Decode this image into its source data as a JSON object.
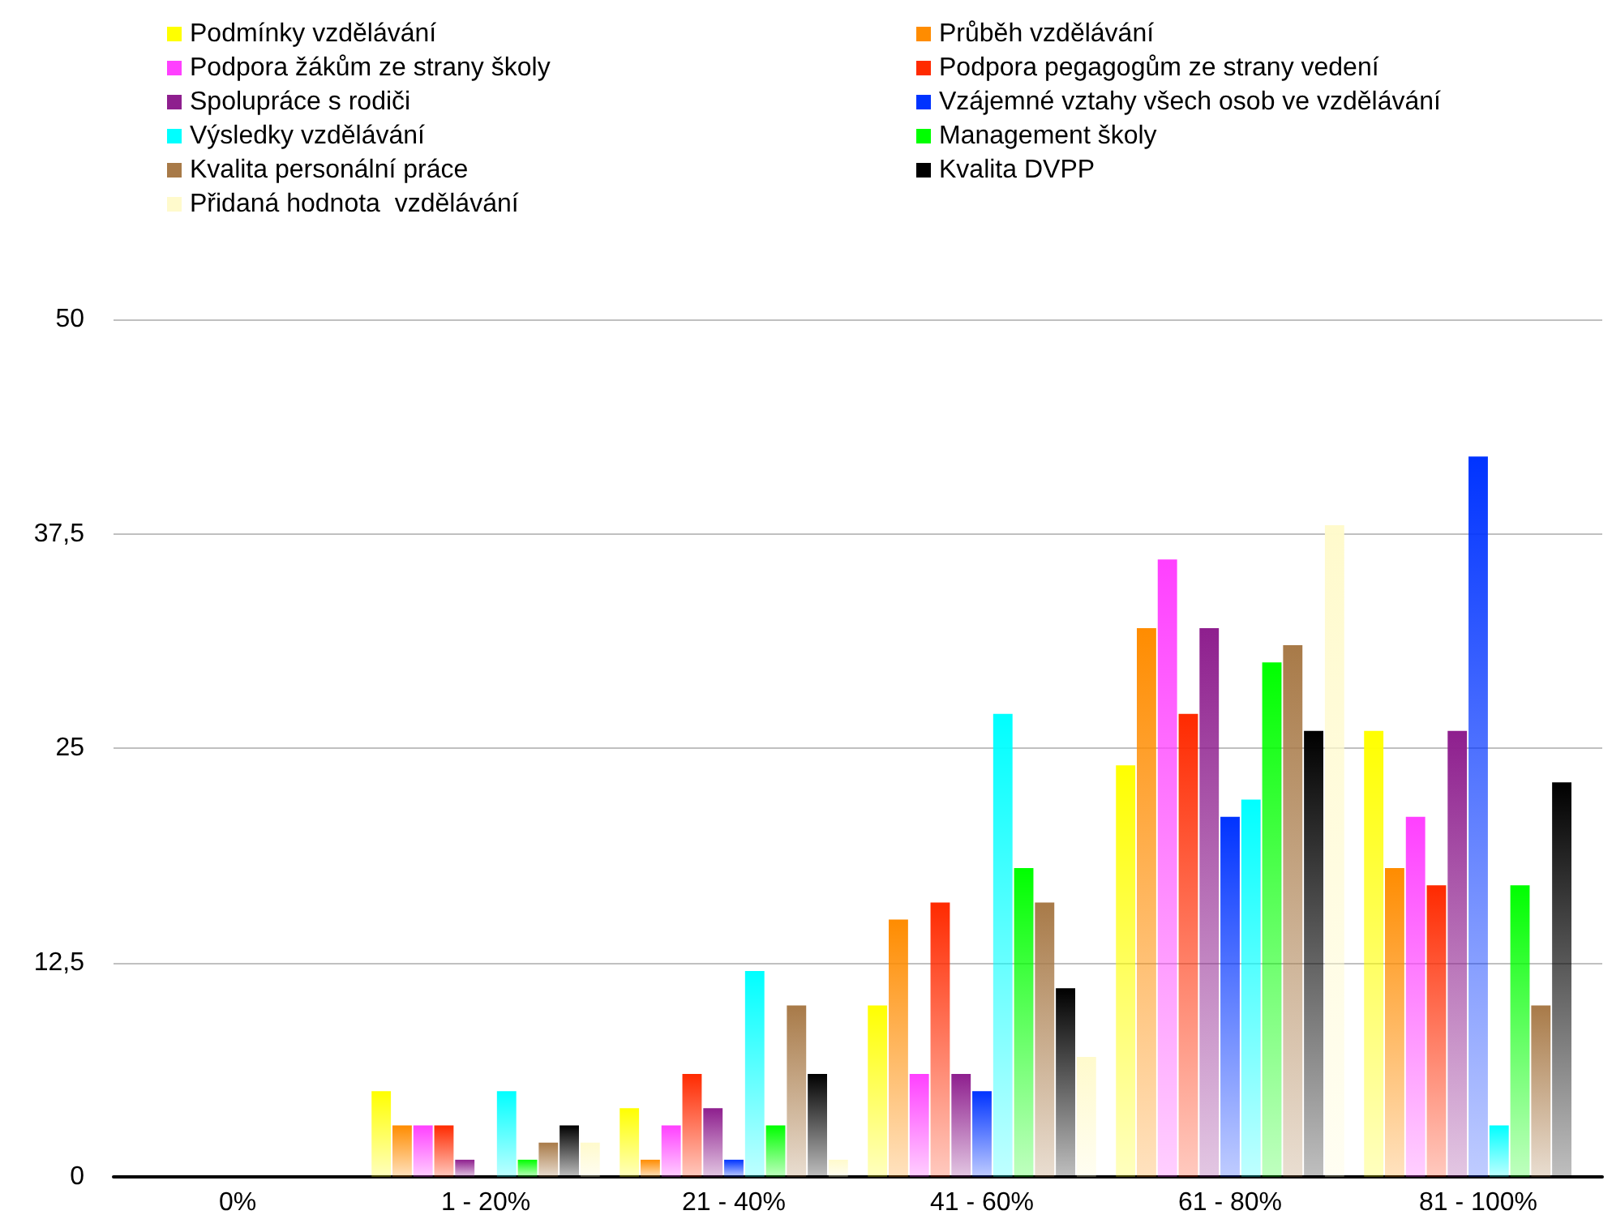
{
  "chart_data": {
    "type": "bar",
    "categories": [
      "0%",
      "1 - 20%",
      "21 - 40%",
      "41 - 60%",
      "61 - 80%",
      "81 - 100%"
    ],
    "ylim": [
      0,
      50
    ],
    "yticks": [
      0,
      {
        "value": 12.5,
        "label": "12,5"
      },
      25,
      {
        "value": 37.5,
        "label": "37,5"
      },
      50
    ],
    "grid": "y",
    "legend": "top",
    "series": [
      {
        "name": "Podmínky vzdělávání",
        "color": "#ffff00",
        "values": [
          0,
          5,
          4,
          10,
          24,
          26
        ]
      },
      {
        "name": "Průběh vzdělávání",
        "color": "#ff8c00",
        "values": [
          0,
          3,
          1,
          15,
          32,
          18
        ]
      },
      {
        "name": "Podpora žákům ze strany školy",
        "color": "#ff40ff",
        "values": [
          0,
          3,
          3,
          6,
          36,
          21
        ]
      },
      {
        "name": "Podpora pegagogům ze strany vedení",
        "color": "#ff2a00",
        "values": [
          0,
          3,
          6,
          16,
          27,
          17
        ]
      },
      {
        "name": "Spolupráce s rodiči",
        "color": "#8e1f8e",
        "values": [
          0,
          1,
          4,
          6,
          32,
          26
        ]
      },
      {
        "name": "Vzájemné vztahy všech osob ve vzdělávání",
        "color": "#0033ff",
        "values": [
          0,
          0,
          1,
          5,
          21,
          42
        ]
      },
      {
        "name": "Výsledky vzdělávání",
        "color": "#00ffff",
        "values": [
          0,
          5,
          12,
          27,
          22,
          3
        ]
      },
      {
        "name": "Management školy",
        "color": "#00ff00",
        "values": [
          0,
          1,
          3,
          18,
          30,
          17
        ]
      },
      {
        "name": "Kvalita personální práce",
        "color": "#a87a48",
        "values": [
          0,
          2,
          10,
          16,
          31,
          10
        ]
      },
      {
        "name": "Kvalita DVPP",
        "color": "#000000",
        "values": [
          0,
          3,
          6,
          11,
          26,
          23
        ]
      },
      {
        "name": "Přidaná hodnota  vzdělávání",
        "color": "#fffacc",
        "values": [
          0,
          2,
          1,
          7,
          38,
          0
        ]
      }
    ]
  }
}
